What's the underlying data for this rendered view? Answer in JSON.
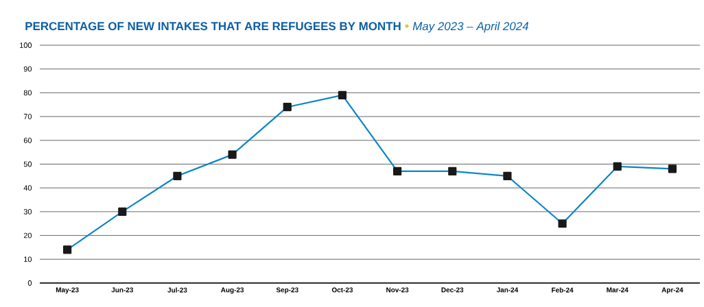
{
  "chart_data": {
    "type": "line",
    "title": "PERCENTAGE OF NEW INTAKES THAT ARE REFUGEES BY MONTH",
    "subtitle": "May 2023 – April 2024",
    "categories": [
      "May-23",
      "Jun-23",
      "Jul-23",
      "Aug-23",
      "Sep-23",
      "Oct-23",
      "Nov-23",
      "Dec-23",
      "Jan-24",
      "Feb-24",
      "Mar-24",
      "Apr-24"
    ],
    "series": [
      {
        "color": "#0a85c9",
        "values": [
          14,
          30,
          45,
          54,
          74,
          79,
          47,
          47,
          45,
          25,
          49,
          48
        ]
      }
    ],
    "ylim": [
      0,
      100
    ],
    "yticks": [
      0,
      10,
      20,
      30,
      40,
      50,
      60,
      70,
      80,
      90,
      100
    ],
    "grid": "y",
    "marker": "square",
    "line_style": "solid"
  }
}
